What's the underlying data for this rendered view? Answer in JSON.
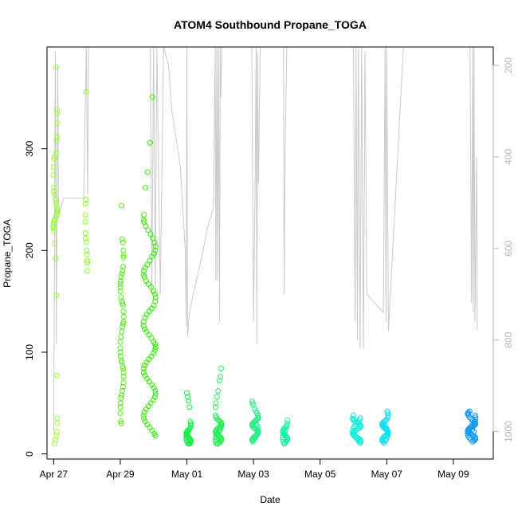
{
  "chart_data": {
    "type": "scatter",
    "title": "ATOM4 Southbound Propane_TOGA",
    "xlabel": "Date",
    "ylabel": "Propane_TOGA",
    "xlim": [
      -0.2,
      13.2
    ],
    "ylim": [
      -5,
      400
    ],
    "x_ticks": [
      {
        "day": 0,
        "label": "Apr 27"
      },
      {
        "day": 2,
        "label": "Apr 29"
      },
      {
        "day": 4,
        "label": "May 01"
      },
      {
        "day": 6,
        "label": "May 03"
      },
      {
        "day": 8,
        "label": "May 05"
      },
      {
        "day": 10,
        "label": "May 07"
      },
      {
        "day": 12,
        "label": "May 09"
      }
    ],
    "y_ticks": [
      0,
      100,
      200,
      300
    ],
    "right_axis": {
      "label": "",
      "lim": [
        1060,
        160
      ],
      "ticks": [
        200,
        400,
        600,
        800,
        1000
      ],
      "color": "#b5b5b5"
    },
    "clusters": [
      {
        "day": 0.05,
        "spread": 0.06,
        "values": [
          380,
          338,
          335,
          325,
          312,
          308,
          296,
          292,
          290,
          282,
          274,
          262,
          258,
          255,
          250,
          246,
          242,
          240,
          238,
          236,
          234,
          232,
          230,
          228,
          226,
          224,
          222,
          219,
          207,
          192,
          156,
          77,
          35,
          30,
          22,
          18,
          14,
          10
        ],
        "color": "#99ff33"
      },
      {
        "day": 0.98,
        "spread": 0.03,
        "values": [
          356,
          250,
          246,
          235,
          228,
          217,
          212,
          208,
          200,
          196,
          190,
          188,
          180
        ],
        "color": "#88ff22"
      },
      {
        "day": 2.05,
        "spread": 0.05,
        "values": [
          244,
          211,
          208,
          200,
          195,
          193,
          184,
          180,
          177,
          174,
          170,
          167,
          164,
          160,
          154,
          150,
          148,
          146,
          140,
          135,
          130,
          128,
          125,
          120,
          115,
          110,
          104,
          100,
          96,
          92,
          90,
          86,
          84,
          80,
          76,
          70,
          66,
          62,
          58,
          55,
          50,
          46,
          40,
          32,
          30
        ],
        "color": "#55ee11"
      },
      {
        "day": 2.88,
        "spread": 0.18,
        "values": [
          351,
          306,
          277,
          262,
          235,
          230,
          228,
          224,
          220,
          216,
          212,
          208,
          204,
          200,
          197,
          194,
          190,
          186,
          183,
          180,
          176,
          174,
          170,
          167,
          164,
          160,
          157,
          154,
          150,
          146,
          143,
          140,
          137,
          134,
          130,
          126,
          123,
          120,
          117,
          114,
          110,
          108,
          105,
          102,
          99,
          96,
          93,
          90,
          87,
          84,
          80,
          77,
          74,
          71,
          68,
          65,
          62,
          59,
          56,
          53,
          50,
          47,
          44,
          41,
          38,
          35,
          32,
          29,
          26,
          23,
          20,
          18
        ],
        "color": "#33ee00"
      },
      {
        "day": 4.05,
        "spread": 0.07,
        "values": [
          60,
          56,
          52,
          46,
          32,
          30,
          28,
          26,
          25,
          24,
          23,
          22,
          21,
          20,
          19,
          18,
          17,
          16,
          15,
          14,
          13,
          12,
          11,
          10,
          10,
          11,
          12,
          14,
          16,
          18,
          20,
          22
        ],
        "color": "#11ee44"
      },
      {
        "day": 4.95,
        "spread": 0.09,
        "values": [
          84,
          76,
          72,
          62,
          56,
          50,
          46,
          38,
          36,
          34,
          33,
          32,
          31,
          30,
          29,
          28,
          27,
          26,
          25,
          24,
          23,
          22,
          21,
          20,
          19,
          18,
          17,
          16,
          15,
          14,
          13,
          12,
          11,
          10,
          10,
          12,
          14,
          16,
          18,
          20,
          22,
          24,
          26,
          28,
          30
        ],
        "color": "#22ee55"
      },
      {
        "day": 6.05,
        "spread": 0.09,
        "values": [
          52,
          50,
          48,
          44,
          42,
          40,
          38,
          36,
          35,
          34,
          33,
          32,
          31,
          30,
          29,
          28,
          27,
          26,
          25,
          24,
          23,
          22,
          21,
          20,
          19,
          18,
          17,
          16,
          15,
          14,
          13,
          12,
          14,
          16,
          18,
          20,
          22,
          24,
          26,
          28,
          30,
          32
        ],
        "color": "#22ee88"
      },
      {
        "day": 6.95,
        "spread": 0.07,
        "values": [
          33,
          30,
          28,
          27,
          26,
          25,
          24,
          23,
          22,
          21,
          20,
          19,
          18,
          17,
          16,
          15,
          14,
          13,
          12,
          11,
          10,
          12,
          14,
          16,
          18,
          20,
          22,
          24
        ],
        "color": "#22eeaa"
      },
      {
        "day": 9.1,
        "spread": 0.12,
        "values": [
          38,
          35,
          34,
          33,
          32,
          31,
          30,
          29,
          28,
          27,
          26,
          25,
          24,
          23,
          22,
          21,
          20,
          19,
          18,
          17,
          16,
          15,
          14,
          13,
          12,
          11,
          13,
          15,
          17,
          19,
          21,
          23,
          25,
          27,
          29,
          31,
          33,
          35
        ],
        "color": "#11eedd"
      },
      {
        "day": 9.95,
        "spread": 0.09,
        "values": [
          42,
          40,
          38,
          36,
          34,
          33,
          32,
          31,
          30,
          29,
          28,
          27,
          26,
          25,
          24,
          23,
          22,
          21,
          20,
          19,
          18,
          17,
          16,
          15,
          14,
          13,
          12,
          11,
          13,
          15,
          17,
          19,
          21,
          23,
          25,
          27,
          29
        ],
        "color": "#11ddee"
      },
      {
        "day": 12.55,
        "spread": 0.12,
        "values": [
          42,
          41,
          40,
          39,
          38,
          36,
          34,
          33,
          32,
          31,
          30,
          29,
          28,
          27,
          26,
          25,
          24,
          23,
          22,
          21,
          20,
          19,
          18,
          17,
          16,
          15,
          14,
          13,
          12,
          14,
          16,
          18,
          20,
          22,
          24,
          26,
          28,
          30,
          32,
          34,
          36,
          38,
          22,
          24,
          26
        ],
        "color": "#1199ee"
      }
    ],
    "altitude_track": {
      "color": "#c8c8c8",
      "points": [
        [
          0.0,
          1000
        ],
        [
          0.05,
          170
        ],
        [
          0.08,
          810
        ],
        [
          0.12,
          200
        ],
        [
          0.15,
          530
        ],
        [
          0.3,
          490
        ],
        [
          0.9,
          490
        ],
        [
          0.98,
          160
        ],
        [
          1.02,
          480
        ],
        [
          1.05,
          160
        ],
        [
          1.8,
          160
        ],
        [
          2.0,
          160
        ],
        [
          2.9,
          160
        ],
        [
          2.95,
          700
        ],
        [
          3.0,
          160
        ],
        [
          3.05,
          690
        ],
        [
          3.1,
          160
        ],
        [
          3.2,
          700
        ],
        [
          3.3,
          160
        ],
        [
          3.45,
          200
        ],
        [
          3.55,
          300
        ],
        [
          3.8,
          420
        ],
        [
          3.95,
          600
        ],
        [
          3.98,
          770
        ],
        [
          4.0,
          160
        ],
        [
          4.02,
          790
        ],
        [
          4.05,
          760
        ],
        [
          4.1,
          730
        ],
        [
          4.5,
          600
        ],
        [
          4.6,
          560
        ],
        [
          4.8,
          510
        ],
        [
          4.85,
          160
        ],
        [
          4.87,
          670
        ],
        [
          4.9,
          160
        ],
        [
          4.92,
          670
        ],
        [
          4.95,
          160
        ],
        [
          4.98,
          760
        ],
        [
          5.0,
          160
        ],
        [
          5.02,
          270
        ],
        [
          5.05,
          160
        ],
        [
          5.5,
          160
        ],
        [
          5.95,
          160
        ],
        [
          6.0,
          760
        ],
        [
          6.05,
          450
        ],
        [
          6.08,
          160
        ],
        [
          6.1,
          810
        ],
        [
          6.12,
          170
        ],
        [
          6.15,
          460
        ],
        [
          6.2,
          160
        ],
        [
          6.5,
          160
        ],
        [
          6.9,
          160
        ],
        [
          6.92,
          700
        ],
        [
          6.95,
          390
        ],
        [
          7.0,
          160
        ],
        [
          7.5,
          160
        ],
        [
          9.0,
          160
        ],
        [
          9.05,
          760
        ],
        [
          9.08,
          160
        ],
        [
          9.12,
          800
        ],
        [
          9.15,
          160
        ],
        [
          9.2,
          820
        ],
        [
          9.25,
          160
        ],
        [
          9.3,
          820
        ],
        [
          9.35,
          170
        ],
        [
          9.4,
          700
        ],
        [
          9.9,
          740
        ],
        [
          9.95,
          160
        ],
        [
          9.98,
          760
        ],
        [
          10.0,
          160
        ],
        [
          10.05,
          780
        ],
        [
          10.5,
          160
        ],
        [
          12.0,
          160
        ],
        [
          12.5,
          160
        ],
        [
          12.55,
          720
        ],
        [
          12.58,
          160
        ],
        [
          12.6,
          740
        ],
        [
          12.62,
          160
        ],
        [
          12.65,
          760
        ],
        [
          12.7,
          400
        ],
        [
          12.72,
          780
        ]
      ]
    }
  }
}
